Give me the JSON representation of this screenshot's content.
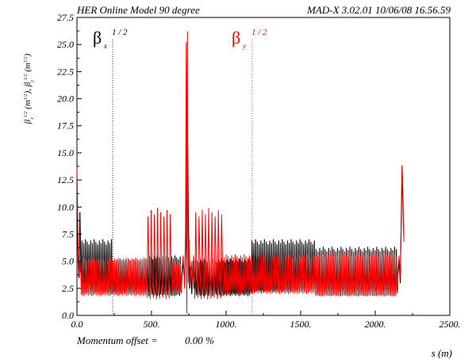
{
  "header": {
    "left": "HER Online Model 90 degree",
    "right": "MAD-X 3.02.01  10/06/08 16.56.59"
  },
  "footer": {
    "momentum_label": "Momentum offset =",
    "momentum_value": "0.00 %"
  },
  "legend": {
    "x": {
      "symbol": "β",
      "sub": "x",
      "sup": "1 / 2",
      "color": "#000000"
    },
    "y": {
      "symbol": "β",
      "sub": "y",
      "sup": "1 / 2",
      "color": "#ff0000"
    }
  },
  "chart_data": {
    "type": "line",
    "title": "",
    "xlabel": "s (m)",
    "ylabel": "βx^1/2 (m^1/2), βy^1/2 (m^1/2)",
    "xlim": [
      0,
      2500
    ],
    "ylim": [
      0,
      27.5
    ],
    "x_ticks": [
      0,
      500,
      1000,
      1500,
      2000,
      2500
    ],
    "x_tick_labels": [
      "0.0",
      "500.",
      "1000.",
      "1500.",
      "2000.",
      "2500."
    ],
    "y_ticks": [
      0,
      2.5,
      5,
      7.5,
      10,
      12.5,
      15,
      17.5,
      20,
      22.5,
      25,
      27.5
    ],
    "y_tick_labels": [
      "0.0",
      "2.5",
      "5.0",
      "7.5",
      "10.0",
      "12.5",
      "15.0",
      "17.5",
      "20.0",
      "22.5",
      "25.0",
      "27.5"
    ],
    "grid": false,
    "markers": [
      {
        "name": "βx^1/2",
        "x": 240,
        "color": "#000000",
        "style": "dotted"
      },
      {
        "name": "βy^1/2",
        "x": 1175,
        "color": "#ff0000",
        "style": "dotted"
      }
    ],
    "series": [
      {
        "name": "βx^1/2",
        "color": "#000000",
        "segments": [
          {
            "x_start": 0,
            "x_end": 30,
            "points": [
              [
                0,
                12.5
              ],
              [
                4,
                8
              ],
              [
                8,
                5
              ],
              [
                12,
                3.5
              ],
              [
                16,
                5.5
              ],
              [
                20,
                9.5
              ],
              [
                24,
                6
              ],
              [
                28,
                3.2
              ]
            ]
          },
          {
            "x_start": 30,
            "x_end": 240,
            "period": 11.5,
            "min": 2.0,
            "max": 7.0
          },
          {
            "x_start": 240,
            "x_end": 470,
            "period": 11.5,
            "min": 2.0,
            "max": 5.2
          },
          {
            "x_start": 470,
            "x_end": 700,
            "period": 11.5,
            "min": 1.8,
            "max": 5.5
          },
          {
            "x_start": 700,
            "x_end": 790,
            "points": [
              [
                700,
                2.8
              ],
              [
                712,
                5
              ],
              [
                722,
                3
              ],
              [
                728,
                6
              ],
              [
                733,
                12
              ],
              [
                737,
                18
              ],
              [
                741,
                17
              ],
              [
                745,
                12
              ],
              [
                750,
                6
              ],
              [
                755,
                2.5
              ],
              [
                762,
                4.5
              ],
              [
                770,
                2
              ],
              [
                778,
                5
              ],
              [
                785,
                2.5
              ],
              [
                790,
                3
              ]
            ]
          },
          {
            "x_start": 790,
            "x_end": 1170,
            "period": 12,
            "min": 1.8,
            "max": 5.2
          },
          {
            "x_start": 1170,
            "x_end": 1600,
            "period": 12,
            "min": 2.2,
            "max": 7.0
          },
          {
            "x_start": 1600,
            "x_end": 2150,
            "period": 12,
            "min": 1.8,
            "max": 6.3
          },
          {
            "x_start": 2150,
            "x_end": 2210,
            "points": [
              [
                2150,
                3.5
              ],
              [
                2160,
                5
              ],
              [
                2168,
                3
              ],
              [
                2175,
                9
              ],
              [
                2180,
                13.8
              ],
              [
                2186,
                10
              ],
              [
                2192,
                7
              ]
            ]
          }
        ]
      },
      {
        "name": "βy^1/2",
        "color": "#ff0000",
        "segments": [
          {
            "x_start": 0,
            "x_end": 30,
            "points": [
              [
                0,
                13.8
              ],
              [
                4,
                10
              ],
              [
                8,
                6
              ],
              [
                12,
                4
              ],
              [
                16,
                3.5
              ],
              [
                20,
                5
              ],
              [
                24,
                4
              ],
              [
                28,
                3.8
              ]
            ]
          },
          {
            "x_start": 30,
            "x_end": 470,
            "period": 11.5,
            "min": 1.8,
            "max": 5.3
          },
          {
            "x_start": 470,
            "x_end": 640,
            "period": 22,
            "min": 1.5,
            "max": 9.9
          },
          {
            "x_start": 640,
            "x_end": 700,
            "period": 11.5,
            "min": 2.0,
            "max": 5.0
          },
          {
            "x_start": 700,
            "x_end": 790,
            "points": [
              [
                700,
                3.5
              ],
              [
                712,
                5.5
              ],
              [
                722,
                2.5
              ],
              [
                728,
                8
              ],
              [
                731,
                18
              ],
              [
                733,
                25.2
              ],
              [
                735,
                4
              ],
              [
                737,
                0.2
              ],
              [
                739,
                22
              ],
              [
                741,
                26.2
              ],
              [
                743,
                10
              ],
              [
                746,
                3
              ],
              [
                752,
                7
              ],
              [
                758,
                2.5
              ],
              [
                766,
                5
              ],
              [
                774,
                3
              ],
              [
                782,
                5.5
              ],
              [
                790,
                3
              ]
            ]
          },
          {
            "x_start": 790,
            "x_end": 985,
            "period": 22,
            "min": 1.5,
            "max": 9.9
          },
          {
            "x_start": 985,
            "x_end": 1600,
            "period": 12,
            "min": 2.0,
            "max": 5.6
          },
          {
            "x_start": 1600,
            "x_end": 2150,
            "period": 12,
            "min": 1.8,
            "max": 5.8
          },
          {
            "x_start": 2150,
            "x_end": 2210,
            "points": [
              [
                2150,
                4
              ],
              [
                2160,
                5.5
              ],
              [
                2168,
                3.5
              ],
              [
                2175,
                10
              ],
              [
                2180,
                13.8
              ],
              [
                2186,
                11
              ],
              [
                2192,
                6.8
              ]
            ]
          }
        ]
      }
    ]
  }
}
